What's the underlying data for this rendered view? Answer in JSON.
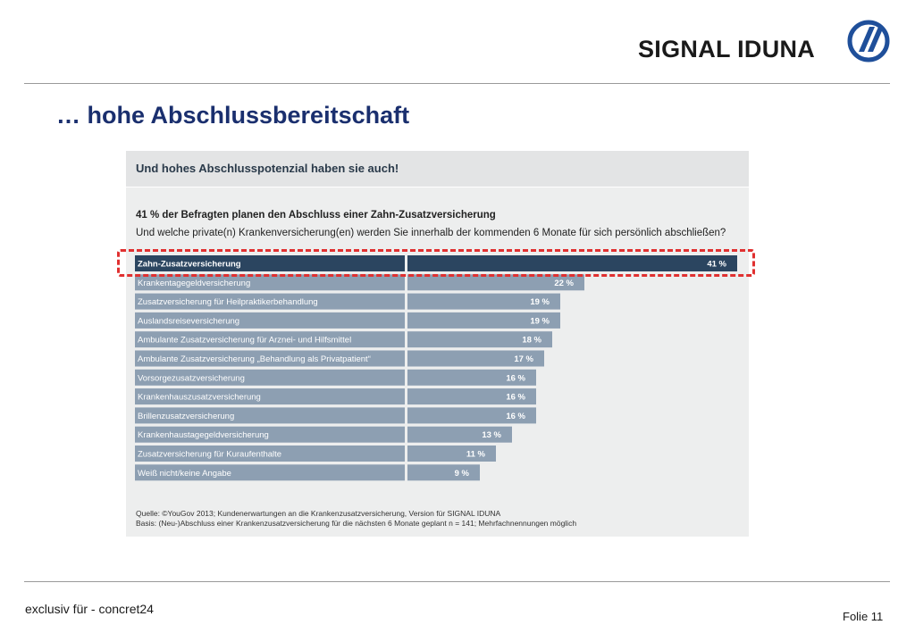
{
  "header": {
    "brand": "SIGNAL IDUNA",
    "logo_icon": "signal-iduna-logo-icon",
    "logo_color": "#1f4f9a"
  },
  "slide": {
    "title": "… hohe Abschlussbereitschaft",
    "title_color": "#1a2f6e"
  },
  "panel": {
    "title": "Und hohes Abschlusspotenzial haben sie auch!",
    "question_title": "41 % der Befragten planen den Abschluss einer Zahn-Zusatzversicherung",
    "question_sub": "Und welche private(n) Krankenversicherung(en) werden Sie innerhalb der kommenden 6 Monate für sich persönlich abschließen?",
    "source_line1": "Quelle: ©YouGov 2013; Kundenerwartungen an die Krankenzusatzversicherung, Version für SIGNAL IDUNA",
    "source_line2": "Basis: (Neu-)Abschluss einer Krankenzusatzversicherung für die nächsten 6 Monate geplant n = 141; Mehrfachnennungen möglich"
  },
  "chart_data": {
    "type": "bar",
    "orientation": "horizontal",
    "categories": [
      "Zahn-Zusatzversicherung",
      "Krankentagegeldversicherung",
      "Zusatzversicherung für Heilpraktikerbehandlung",
      "Auslandsreiseversicherung",
      "Ambulante Zusatzversicherung für Arznei- und Hilfsmittel",
      "Ambulante Zusatzversicherung „Behandlung als Privatpatient“",
      "Vorsorgezusatzversicherung",
      "Krankenhauszusatzversicherung",
      "Brillenzusatzversicherung",
      "Krankenhaustagegeldversicherung",
      "Zusatzversicherung für Kuraufenthalte",
      "Weiß nicht/keine Angabe"
    ],
    "values": [
      41,
      22,
      19,
      19,
      18,
      17,
      16,
      16,
      16,
      13,
      11,
      9
    ],
    "value_labels": [
      "41 %",
      "22 %",
      "19 %",
      "19 %",
      "18 %",
      "17 %",
      "16 %",
      "16 %",
      "16 %",
      "13 %",
      "11 %",
      "9 %"
    ],
    "highlighted_category": "Zahn-Zusatzversicherung",
    "highlight_color": "#2b4560",
    "bar_color": "#8d9fb2",
    "xlim": [
      0,
      41
    ]
  },
  "footer": {
    "left": "exclusiv für - concret24",
    "right": "Folie 11"
  }
}
